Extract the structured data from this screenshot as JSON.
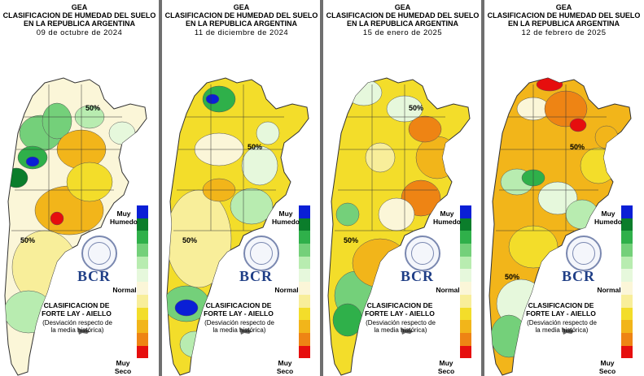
{
  "panels": [
    {
      "org": "GEA",
      "title": "CLASIFICACION DE HUMEDAD DEL SUELO",
      "subtitle": "EN LA REPUBLICA ARGENTINA",
      "date": "09 de octubre de 2024"
    },
    {
      "org": "GEA",
      "title": "CLASIFICACION DE HUMEDAD DEL SUELO",
      "subtitle": "EN LA REPUBLICA ARGENTINA",
      "date": "11 de diciembre de 2024"
    },
    {
      "org": "GEA",
      "title": "CLASIFICACION DE HUMEDAD DEL SUELO",
      "subtitle": "EN LA REPUBLICA ARGENTINA",
      "date": "15 de enero de 2025"
    },
    {
      "org": "GEA",
      "title": "CLASIFICACION DE HUMEDAD DEL SUELO",
      "subtitle": "EN LA REPUBLICA ARGENTINA",
      "date": "12 de febrero de 2025"
    }
  ],
  "legend": {
    "top_label": "Muy Humedo",
    "mid_label": "Normal",
    "bottom_label": "Muy Seco",
    "colors": [
      "#0a1fd6",
      "#0b7d2b",
      "#2fb04a",
      "#74d07a",
      "#b8ecb0",
      "#e6f8dc",
      "#fbf6d8",
      "#f8ee9a",
      "#f3dd2a",
      "#f2b51a",
      "#ee8414",
      "#e60e0e"
    ],
    "method_line1": "CLASIFICACION DE",
    "method_line2": "FORTE LAY - AIELLO",
    "note_line1": "(Desviación respecto de",
    "note_line2": "la media histórica)",
    "logo_text": "BCR"
  },
  "contour_label": "50%"
}
